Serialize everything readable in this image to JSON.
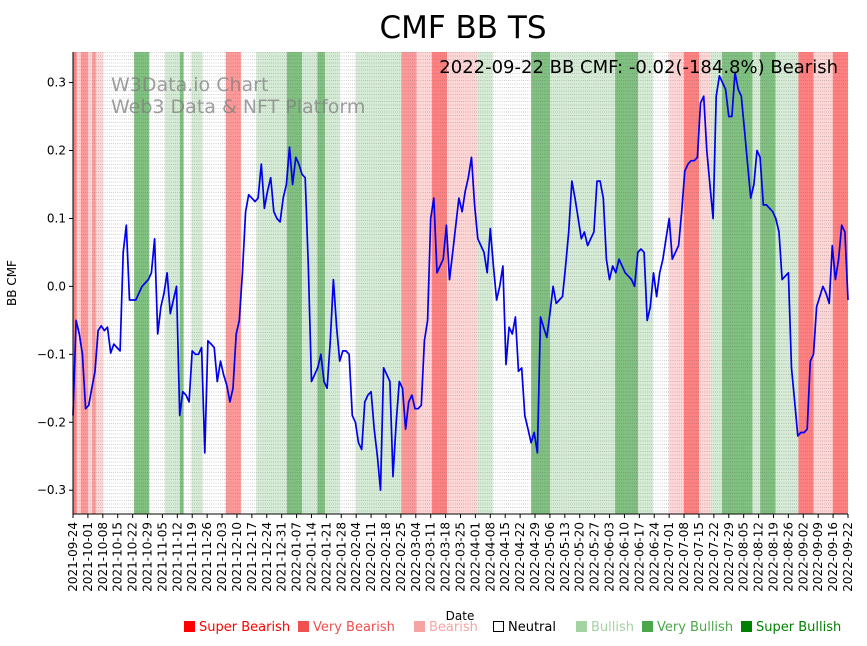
{
  "chart_data": {
    "type": "line",
    "title": "CMF BB TS",
    "xlabel": "Date",
    "ylabel": "BB CMF",
    "ylim": [
      -0.335,
      0.345
    ],
    "yticks": [
      -0.3,
      -0.2,
      -0.1,
      0.0,
      0.1,
      0.2,
      0.3
    ],
    "ytick_labels": [
      "−0.3",
      "−0.2",
      "−0.1",
      "0.0",
      "0.1",
      "0.2",
      "0.3"
    ],
    "xlim": [
      "2021-09-24",
      "2022-09-22"
    ],
    "xtick_labels": [
      "2021-09-24",
      "2021-10-01",
      "2021-10-08",
      "2021-10-15",
      "2021-10-22",
      "2021-10-29",
      "2021-11-05",
      "2021-11-12",
      "2021-11-19",
      "2021-11-26",
      "2021-12-03",
      "2021-12-10",
      "2021-12-17",
      "2021-12-24",
      "2021-12-31",
      "2022-01-07",
      "2022-01-14",
      "2022-01-21",
      "2022-01-28",
      "2022-02-04",
      "2022-02-11",
      "2022-02-18",
      "2022-02-25",
      "2022-03-04",
      "2022-03-11",
      "2022-03-18",
      "2022-03-25",
      "2022-04-01",
      "2022-04-08",
      "2022-04-15",
      "2022-04-22",
      "2022-04-29",
      "2022-05-06",
      "2022-05-13",
      "2022-05-20",
      "2022-05-27",
      "2022-06-03",
      "2022-06-10",
      "2022-06-17",
      "2022-06-24",
      "2022-07-01",
      "2022-07-08",
      "2022-07-15",
      "2022-07-22",
      "2022-07-29",
      "2022-08-05",
      "2022-08-12",
      "2022-08-19",
      "2022-08-26",
      "2022-09-02",
      "2022-09-09",
      "2022-09-16",
      "2022-09-22"
    ],
    "annotation": "2022-09-22 BB CMF: -0.02(-184.8%) Bearish",
    "watermark": [
      "W3Data.io Chart",
      "Web3 Data & NFT Platform"
    ],
    "grid": "vertical dotted at each date",
    "line_color": "#0000ee",
    "series": [
      {
        "values": [
          -0.19,
          -0.05,
          -0.07,
          -0.1,
          -0.18,
          -0.175,
          -0.15,
          -0.125,
          -0.065,
          -0.058,
          -0.065,
          -0.06,
          -0.098,
          -0.085,
          -0.09,
          -0.095,
          0.05,
          0.09,
          -0.02,
          -0.02,
          -0.02,
          -0.01,
          0.0,
          0.005,
          0.01,
          0.02,
          0.07,
          -0.07,
          -0.03,
          -0.01,
          0.02,
          -0.04,
          -0.02,
          0.0,
          -0.19,
          -0.155,
          -0.16,
          -0.17,
          -0.095,
          -0.1,
          -0.1,
          -0.09,
          -0.245,
          -0.08,
          -0.085,
          -0.09,
          -0.14,
          -0.11,
          -0.13,
          -0.145,
          -0.17,
          -0.15,
          -0.07,
          -0.05,
          0.02,
          0.11,
          0.135,
          0.13,
          0.125,
          0.13,
          0.18,
          0.115,
          0.14,
          0.16,
          0.11,
          0.1,
          0.095,
          0.13,
          0.15,
          0.205,
          0.15,
          0.19,
          0.18,
          0.165,
          0.16,
          0.03,
          -0.14,
          -0.13,
          -0.12,
          -0.1,
          -0.14,
          -0.15,
          -0.08,
          0.01,
          -0.06,
          -0.11,
          -0.095,
          -0.095,
          -0.1,
          -0.19,
          -0.2,
          -0.23,
          -0.24,
          -0.17,
          -0.16,
          -0.155,
          -0.21,
          -0.25,
          -0.3,
          -0.12,
          -0.13,
          -0.14,
          -0.28,
          -0.2,
          -0.14,
          -0.15,
          -0.21,
          -0.17,
          -0.16,
          -0.18,
          -0.18,
          -0.175,
          -0.08,
          -0.05,
          0.1,
          0.13,
          0.02,
          0.03,
          0.04,
          0.09,
          0.01,
          0.05,
          0.09,
          0.13,
          0.11,
          0.14,
          0.16,
          0.19,
          0.12,
          0.07,
          0.06,
          0.05,
          0.02,
          0.085,
          0.03,
          -0.02,
          0.0,
          0.03,
          -0.115,
          -0.06,
          -0.07,
          -0.045,
          -0.125,
          -0.12,
          -0.19,
          -0.21,
          -0.23,
          -0.215,
          -0.245,
          -0.045,
          -0.06,
          -0.075,
          -0.04,
          0.0,
          -0.025,
          -0.02,
          -0.015,
          0.03,
          0.08,
          0.155,
          0.13,
          0.1,
          0.07,
          0.08,
          0.06,
          0.07,
          0.08,
          0.155,
          0.155,
          0.13,
          0.04,
          0.01,
          0.03,
          0.02,
          0.04,
          0.03,
          0.02,
          0.015,
          0.01,
          0.0,
          0.05,
          0.055,
          0.05,
          -0.05,
          -0.03,
          0.02,
          -0.015,
          0.02,
          0.04,
          0.07,
          0.1,
          0.04,
          0.05,
          0.06,
          0.11,
          0.17,
          0.18,
          0.185,
          0.185,
          0.19,
          0.27,
          0.28,
          0.2,
          0.15,
          0.1,
          0.28,
          0.31,
          0.3,
          0.29,
          0.25,
          0.25,
          0.315,
          0.29,
          0.28,
          0.23,
          0.18,
          0.13,
          0.15,
          0.2,
          0.19,
          0.12,
          0.12,
          0.115,
          0.11,
          0.1,
          0.08,
          0.01,
          0.015,
          0.02,
          -0.12,
          -0.17,
          -0.22,
          -0.215,
          -0.215,
          -0.21,
          -0.11,
          -0.1,
          -0.03,
          -0.015,
          0.0,
          -0.01,
          -0.025,
          0.06,
          0.01,
          0.04,
          0.09,
          0.08,
          -0.02
        ]
      }
    ],
    "regimes": [
      [
        "sb",
        0,
        1
      ],
      [
        "b",
        1,
        2
      ],
      [
        "vb",
        2,
        4
      ],
      [
        "b",
        4,
        5
      ],
      [
        "vb",
        5,
        6
      ],
      [
        "b",
        6,
        8
      ],
      [
        "n",
        8,
        16
      ],
      [
        "vbu",
        16,
        20
      ],
      [
        "n",
        20,
        24
      ],
      [
        "bu",
        24,
        28
      ],
      [
        "vbu",
        28,
        29
      ],
      [
        "n",
        29,
        31
      ],
      [
        "bu",
        31,
        34
      ],
      [
        "n",
        34,
        40
      ],
      [
        "vb",
        40,
        44
      ],
      [
        "n",
        44,
        48
      ],
      [
        "bu",
        48,
        56
      ],
      [
        "vbu",
        56,
        60
      ],
      [
        "bu",
        60,
        64
      ],
      [
        "vbu",
        64,
        66
      ],
      [
        "bu",
        66,
        70
      ],
      [
        "n",
        70,
        74
      ],
      [
        "bu",
        74,
        86
      ],
      [
        "vb",
        86,
        90
      ],
      [
        "b",
        90,
        94
      ],
      [
        "sb",
        94,
        98
      ],
      [
        "b",
        98,
        106
      ],
      [
        "bu",
        106,
        110
      ],
      [
        "n",
        110,
        120
      ],
      [
        "vbu",
        120,
        125
      ],
      [
        "bu",
        125,
        142
      ],
      [
        "vbu",
        142,
        148
      ],
      [
        "bu",
        148,
        152
      ],
      [
        "n",
        152,
        156
      ],
      [
        "b",
        156,
        160
      ],
      [
        "sb",
        160,
        164
      ],
      [
        "b",
        164,
        167
      ],
      [
        "bu",
        167,
        170
      ],
      [
        "vbu",
        170,
        178
      ],
      [
        "bu",
        178,
        180
      ],
      [
        "vbu",
        180,
        184
      ],
      [
        "bu",
        184,
        190
      ],
      [
        "sb",
        190,
        194
      ],
      [
        "b",
        194,
        199
      ],
      [
        "sb",
        199,
        203
      ]
    ],
    "regime_colors": {
      "sb": "#ff8080",
      "vb": "#ff9999",
      "b": "#ffd6d6",
      "n": "#ffffff",
      "bu": "#d6ebd6",
      "vbu": "#80c080"
    }
  },
  "legend": [
    {
      "label": "Super Bearish",
      "color": "#ff0000",
      "outline": false
    },
    {
      "label": "Very Bearish",
      "color": "#f05050",
      "outline": false
    },
    {
      "label": "Bearish",
      "color": "#f5a3a3",
      "outline": false
    },
    {
      "label": "Neutral",
      "color": "#000000",
      "outline": true
    },
    {
      "label": "Bullish",
      "color": "#a3d3a3",
      "outline": false
    },
    {
      "label": "Very Bullish",
      "color": "#4ca64c",
      "outline": false
    },
    {
      "label": "Super Bullish",
      "color": "#008000",
      "outline": false
    }
  ]
}
